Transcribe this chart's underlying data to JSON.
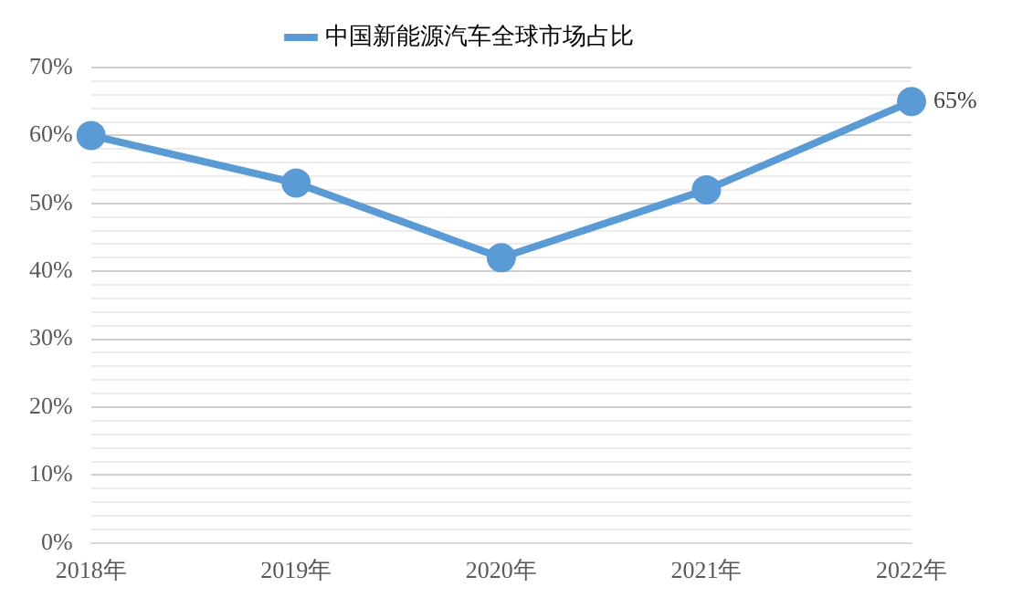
{
  "chart_data": {
    "type": "line",
    "categories": [
      "2018年",
      "2019年",
      "2020年",
      "2021年",
      "2022年"
    ],
    "series": [
      {
        "name": "中国新能源汽车全球市场占比",
        "color": "#5b9bd5",
        "values": [
          60,
          53,
          42,
          52,
          65
        ],
        "value_labels": [
          null,
          null,
          null,
          null,
          "65%"
        ]
      }
    ],
    "ylim": [
      0,
      70
    ],
    "yticks": [
      {
        "value": 0,
        "label": "0%"
      },
      {
        "value": 2,
        "label": null
      },
      {
        "value": 4,
        "label": null
      },
      {
        "value": 6,
        "label": null
      },
      {
        "value": 8,
        "label": null
      },
      {
        "value": 10,
        "label": "10%"
      },
      {
        "value": 12,
        "label": null
      },
      {
        "value": 14,
        "label": null
      },
      {
        "value": 16,
        "label": null
      },
      {
        "value": 18,
        "label": null
      },
      {
        "value": 20,
        "label": "20%"
      },
      {
        "value": 22,
        "label": null
      },
      {
        "value": 24,
        "label": null
      },
      {
        "value": 26,
        "label": null
      },
      {
        "value": 28,
        "label": null
      },
      {
        "value": 30,
        "label": "30%"
      },
      {
        "value": 32,
        "label": null
      },
      {
        "value": 34,
        "label": null
      },
      {
        "value": 36,
        "label": null
      },
      {
        "value": 38,
        "label": null
      },
      {
        "value": 40,
        "label": "40%"
      },
      {
        "value": 42,
        "label": null
      },
      {
        "value": 44,
        "label": null
      },
      {
        "value": 46,
        "label": null
      },
      {
        "value": 48,
        "label": null
      },
      {
        "value": 50,
        "label": "50%"
      },
      {
        "value": 52,
        "label": null
      },
      {
        "value": 54,
        "label": null
      },
      {
        "value": 56,
        "label": null
      },
      {
        "value": 58,
        "label": null
      },
      {
        "value": 60,
        "label": "60%"
      },
      {
        "value": 62,
        "label": null
      },
      {
        "value": 64,
        "label": null
      },
      {
        "value": 66,
        "label": null
      },
      {
        "value": 68,
        "label": null
      },
      {
        "value": 70,
        "label": "70%"
      }
    ],
    "grid": "y",
    "legend": "top",
    "marker": "circle",
    "line_style": "solid"
  }
}
